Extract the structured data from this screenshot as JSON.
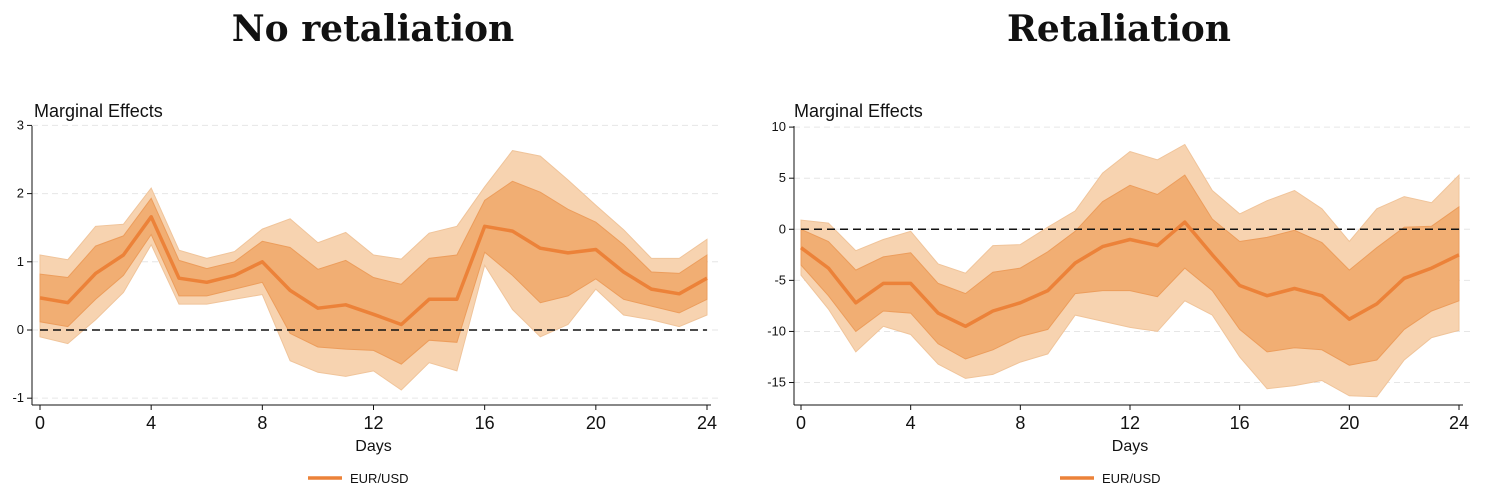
{
  "panels": [
    {
      "title": "No retaliation"
    },
    {
      "title": "Retaliation"
    }
  ],
  "colors": {
    "outer_band": "#f7d3b0",
    "inner_band": "#f1ae73",
    "line": "#ec8239",
    "zero_line": "#111111",
    "grid": "#e6e6e6"
  },
  "chart_data": [
    {
      "type": "area",
      "ylabel": "Marginal Effects",
      "xlabel": "Days",
      "ylim": [
        -1.1,
        3.05
      ],
      "yticks": [
        "-1",
        "0",
        "1",
        "2",
        "3"
      ],
      "xticks": [
        "0",
        "4",
        "8",
        "12",
        "16",
        "20",
        "24"
      ],
      "grid": "horizontal dashed",
      "zero_reference": 0,
      "legend_position": "bottom-center",
      "x": [
        0,
        1,
        2,
        3,
        4,
        5,
        6,
        7,
        8,
        9,
        10,
        11,
        12,
        13,
        14,
        15,
        16,
        17,
        18,
        19,
        20,
        21,
        22,
        23,
        24
      ],
      "series": [
        {
          "name": "EUR/USD",
          "values": [
            0.47,
            0.4,
            0.83,
            1.1,
            1.66,
            0.76,
            0.7,
            0.8,
            1.0,
            0.58,
            0.32,
            0.37,
            0.23,
            0.08,
            0.45,
            0.45,
            1.52,
            1.45,
            1.2,
            1.13,
            1.18,
            0.85,
            0.6,
            0.53,
            0.76
          ],
          "ci_inner_lower": [
            0.12,
            0.05,
            0.45,
            0.8,
            1.4,
            0.5,
            0.5,
            0.6,
            0.7,
            -0.05,
            -0.25,
            -0.28,
            -0.3,
            -0.5,
            -0.15,
            -0.18,
            1.14,
            0.8,
            0.4,
            0.5,
            0.75,
            0.45,
            0.35,
            0.25,
            0.45
          ],
          "ci_inner_upper": [
            0.82,
            0.77,
            1.23,
            1.38,
            1.93,
            1.02,
            0.9,
            1.0,
            1.3,
            1.21,
            0.89,
            1.02,
            0.77,
            0.67,
            1.05,
            1.1,
            1.9,
            2.18,
            2.02,
            1.77,
            1.58,
            1.25,
            0.85,
            0.83,
            1.1
          ],
          "ci_outer_lower": [
            -0.1,
            -0.2,
            0.15,
            0.55,
            1.25,
            0.38,
            0.38,
            0.45,
            0.52,
            -0.45,
            -0.62,
            -0.68,
            -0.6,
            -0.88,
            -0.48,
            -0.6,
            0.95,
            0.3,
            -0.1,
            0.08,
            0.6,
            0.22,
            0.15,
            0.05,
            0.22
          ],
          "ci_outer_upper": [
            1.1,
            1.03,
            1.52,
            1.55,
            2.08,
            1.17,
            1.05,
            1.15,
            1.48,
            1.63,
            1.28,
            1.43,
            1.1,
            1.04,
            1.42,
            1.52,
            2.1,
            2.63,
            2.55,
            2.2,
            1.83,
            1.47,
            1.05,
            1.05,
            1.33
          ]
        }
      ]
    },
    {
      "type": "area",
      "ylabel": "Marginal Effects",
      "xlabel": "Days",
      "ylim": [
        -17.2,
        10.5
      ],
      "yticks": [
        "-15",
        "-10",
        "-5",
        "0",
        "5",
        "10"
      ],
      "xticks": [
        "0",
        "4",
        "8",
        "12",
        "16",
        "20",
        "24"
      ],
      "grid": "horizontal dashed",
      "zero_reference": 0,
      "legend_position": "bottom-center",
      "x": [
        0,
        1,
        2,
        3,
        4,
        5,
        6,
        7,
        8,
        9,
        10,
        11,
        12,
        13,
        14,
        15,
        16,
        17,
        18,
        19,
        20,
        21,
        22,
        23,
        24
      ],
      "series": [
        {
          "name": "EUR/USD",
          "values": [
            -1.8,
            -3.8,
            -7.2,
            -5.3,
            -5.3,
            -8.2,
            -9.5,
            -8.0,
            -7.2,
            -6.0,
            -3.3,
            -1.7,
            -1.0,
            -1.6,
            0.7,
            -2.5,
            -5.5,
            -6.5,
            -5.8,
            -6.5,
            -8.8,
            -7.3,
            -4.8,
            -3.8,
            -2.5
          ],
          "ci_inner_lower": [
            -3.5,
            -6.5,
            -10.0,
            -8.0,
            -8.2,
            -11.2,
            -12.7,
            -11.8,
            -10.5,
            -9.8,
            -6.3,
            -6.0,
            -6.0,
            -6.6,
            -3.8,
            -6.0,
            -9.8,
            -12.0,
            -11.6,
            -11.8,
            -13.3,
            -12.8,
            -9.8,
            -8.0,
            -7.0
          ],
          "ci_inner_upper": [
            0.0,
            -1.2,
            -4.0,
            -2.7,
            -2.3,
            -5.3,
            -6.3,
            -4.2,
            -3.8,
            -2.2,
            -0.2,
            2.7,
            4.3,
            3.4,
            5.3,
            1.0,
            -1.2,
            -0.8,
            -0.1,
            -1.3,
            -4.0,
            -1.8,
            0.2,
            0.3,
            2.2
          ],
          "ci_outer_lower": [
            -4.5,
            -7.8,
            -12.0,
            -9.5,
            -10.3,
            -13.2,
            -14.6,
            -14.2,
            -13.0,
            -12.2,
            -8.4,
            -9.0,
            -9.6,
            -10.0,
            -7.0,
            -8.4,
            -12.5,
            -15.6,
            -15.3,
            -14.8,
            -16.3,
            -16.4,
            -12.8,
            -10.6,
            -9.9
          ],
          "ci_outer_upper": [
            0.9,
            0.6,
            -2.1,
            -1.0,
            -0.2,
            -3.4,
            -4.3,
            -1.6,
            -1.5,
            0.2,
            1.8,
            5.5,
            7.6,
            6.8,
            8.3,
            3.8,
            1.5,
            2.8,
            3.8,
            2.0,
            -1.2,
            2.0,
            3.2,
            2.6,
            5.3
          ]
        }
      ]
    }
  ]
}
